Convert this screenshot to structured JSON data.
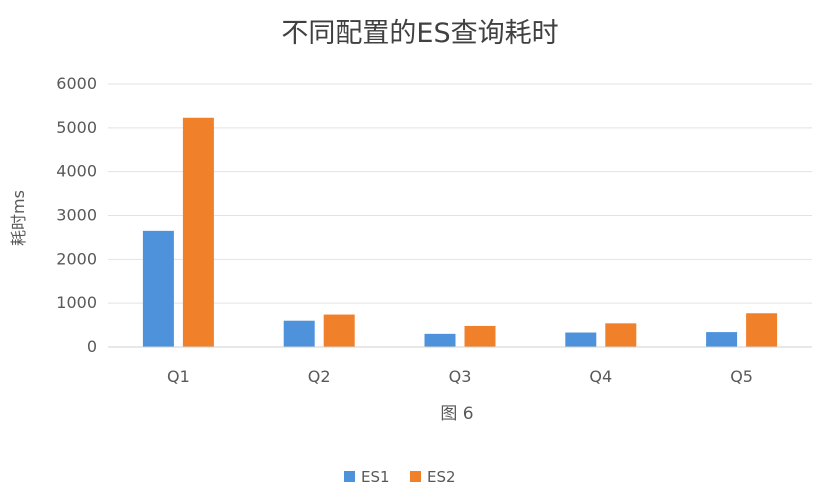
{
  "chart_data": {
    "type": "bar",
    "title": "不同配置的ES查询耗时",
    "ylabel": "耗时ms",
    "xlabel": "",
    "caption": "图 6",
    "categories": [
      "Q1",
      "Q2",
      "Q3",
      "Q4",
      "Q5"
    ],
    "ylim": [
      0,
      6000
    ],
    "yticks": [
      0,
      1000,
      2000,
      3000,
      4000,
      5000,
      6000
    ],
    "grid": true,
    "legend_position": "bottom",
    "series": [
      {
        "name": "ES1",
        "color": "#4e92dc",
        "values": [
          2650,
          600,
          300,
          330,
          340
        ]
      },
      {
        "name": "ES2",
        "color": "#f0802a",
        "values": [
          5230,
          740,
          480,
          540,
          770
        ]
      }
    ]
  }
}
